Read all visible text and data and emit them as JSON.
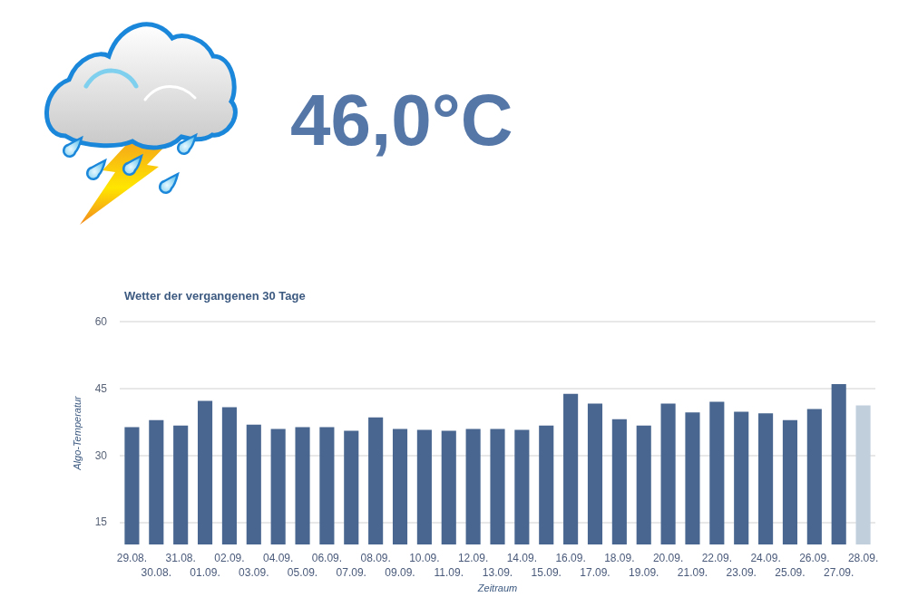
{
  "chart_data": {
    "type": "bar",
    "title": "Wetter der vergangenen 30 Tage",
    "xlabel": "Zeitraum",
    "ylabel": "Algo-Temperatur",
    "annotations": [
      "46,0°C"
    ],
    "categories": [
      "29.08.",
      "30.08.",
      "31.08.",
      "01.09.",
      "02.09.",
      "03.09.",
      "04.09.",
      "05.09.",
      "06.09.",
      "07.09.",
      "08.09.",
      "09.09.",
      "10.09.",
      "11.09.",
      "12.09.",
      "13.09.",
      "14.09.",
      "15.09.",
      "16.09.",
      "17.09.",
      "18.09.",
      "19.09.",
      "20.09.",
      "21.09.",
      "22.09.",
      "23.09.",
      "24.09.",
      "25.09.",
      "26.09.",
      "27.09.",
      "28.09."
    ],
    "values": [
      36.3,
      37.9,
      36.7,
      42.2,
      40.8,
      36.9,
      35.9,
      36.3,
      36.3,
      35.5,
      38.5,
      35.9,
      35.7,
      35.5,
      35.9,
      35.9,
      35.7,
      36.7,
      43.8,
      41.6,
      38.1,
      36.7,
      41.6,
      39.6,
      42.0,
      39.8,
      39.4,
      37.9,
      40.4,
      46.0,
      41.2
    ],
    "colors": [
      "#48668f",
      "#48668f",
      "#48668f",
      "#48668f",
      "#48668f",
      "#48668f",
      "#48668f",
      "#48668f",
      "#48668f",
      "#48668f",
      "#48668f",
      "#48668f",
      "#48668f",
      "#48668f",
      "#48668f",
      "#48668f",
      "#48668f",
      "#48668f",
      "#48668f",
      "#48668f",
      "#48668f",
      "#48668f",
      "#48668f",
      "#48668f",
      "#48668f",
      "#48668f",
      "#48668f",
      "#48668f",
      "#48668f",
      "#48668f",
      "#c1cfdd"
    ],
    "ylim": [
      10,
      60
    ],
    "yticks": [
      15,
      30,
      45,
      60
    ],
    "grid": "y"
  }
}
